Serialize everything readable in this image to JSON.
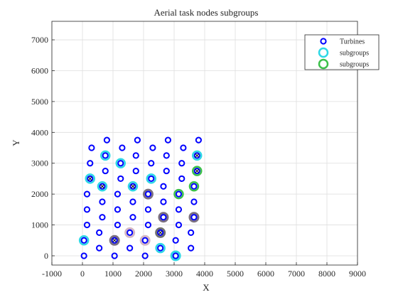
{
  "chart_data": {
    "type": "scatter",
    "title": "Aerial task nodes subgroups",
    "xlabel": "X",
    "ylabel": "Y",
    "xlim": [
      -1000,
      9000
    ],
    "ylim": [
      -300,
      7600
    ],
    "xticks": [
      -1000,
      0,
      1000,
      2000,
      3000,
      4000,
      5000,
      6000,
      7000,
      8000,
      9000
    ],
    "yticks": [
      0,
      1000,
      2000,
      3000,
      4000,
      5000,
      6000,
      7000
    ],
    "grid": true,
    "legend_position": "top-right",
    "series": [
      {
        "name": "Turbines",
        "color": "#0000ff",
        "marker": "ring",
        "points": [
          [
            50,
            0
          ],
          [
            550,
            250
          ],
          [
            1050,
            0
          ],
          [
            1550,
            250
          ],
          [
            2050,
            0
          ],
          [
            2550,
            250
          ],
          [
            3050,
            0
          ],
          [
            3550,
            250
          ],
          [
            50,
            500
          ],
          [
            550,
            750
          ],
          [
            1050,
            500
          ],
          [
            1550,
            750
          ],
          [
            2050,
            500
          ],
          [
            2550,
            750
          ],
          [
            3050,
            500
          ],
          [
            3550,
            750
          ],
          [
            150,
            1000
          ],
          [
            650,
            1250
          ],
          [
            1150,
            1000
          ],
          [
            1650,
            1250
          ],
          [
            2150,
            1000
          ],
          [
            2650,
            1250
          ],
          [
            3150,
            1000
          ],
          [
            3650,
            1250
          ],
          [
            150,
            1500
          ],
          [
            650,
            1750
          ],
          [
            1150,
            1500
          ],
          [
            1650,
            1750
          ],
          [
            2150,
            1500
          ],
          [
            2650,
            1750
          ],
          [
            3150,
            1500
          ],
          [
            3650,
            1750
          ],
          [
            150,
            2000
          ],
          [
            650,
            2250
          ],
          [
            1150,
            2000
          ],
          [
            1650,
            2250
          ],
          [
            2150,
            2000
          ],
          [
            2650,
            2250
          ],
          [
            3150,
            2000
          ],
          [
            3650,
            2250
          ],
          [
            250,
            2500
          ],
          [
            750,
            2750
          ],
          [
            1250,
            2500
          ],
          [
            1750,
            2750
          ],
          [
            2250,
            2500
          ],
          [
            2750,
            2750
          ],
          [
            3250,
            2500
          ],
          [
            3750,
            2750
          ],
          [
            250,
            3000
          ],
          [
            750,
            3250
          ],
          [
            1250,
            3000
          ],
          [
            1750,
            3250
          ],
          [
            2250,
            3000
          ],
          [
            2750,
            3250
          ],
          [
            3250,
            3000
          ],
          [
            3750,
            3250
          ],
          [
            300,
            3500
          ],
          [
            800,
            3750
          ],
          [
            1300,
            3500
          ],
          [
            1800,
            3750
          ],
          [
            2300,
            3500
          ],
          [
            2800,
            3750
          ],
          [
            3300,
            3500
          ],
          [
            3800,
            3750
          ]
        ]
      },
      {
        "name": "subgroups",
        "color": "#2ed8e6",
        "marker": "ring-large",
        "points": [
          [
            50,
            500
          ],
          [
            250,
            2500
          ],
          [
            750,
            3250
          ],
          [
            650,
            2250
          ],
          [
            1250,
            3000
          ],
          [
            1650,
            2250
          ],
          [
            2250,
            2500
          ],
          [
            2550,
            250
          ],
          [
            3050,
            0
          ],
          [
            3750,
            3250
          ]
        ]
      },
      {
        "name": "subgroups",
        "color": "#3cc04a",
        "marker": "ring-large",
        "points": [
          [
            3150,
            2000
          ],
          [
            3650,
            2250
          ],
          [
            3750,
            2750
          ]
        ]
      }
    ],
    "other_marks": [
      {
        "color": "#d4b8c4",
        "points": [
          [
            1550,
            750
          ],
          [
            2050,
            500
          ]
        ]
      },
      {
        "color": "#7a6f80",
        "points": [
          [
            1050,
            500
          ],
          [
            2150,
            2000
          ],
          [
            2650,
            1250
          ],
          [
            3650,
            1250
          ]
        ]
      },
      {
        "color": "#707070",
        "points": [
          [
            2550,
            750
          ]
        ]
      },
      {
        "color": "#2ed8e6",
        "points": [
          [
            3050,
            0
          ]
        ]
      }
    ],
    "cross_marks": [
      [
        1050,
        500
      ],
      [
        250,
        2500
      ],
      [
        650,
        2250
      ],
      [
        1650,
        2250
      ],
      [
        2550,
        750
      ],
      [
        3750,
        3250
      ],
      [
        3750,
        2750
      ]
    ]
  }
}
